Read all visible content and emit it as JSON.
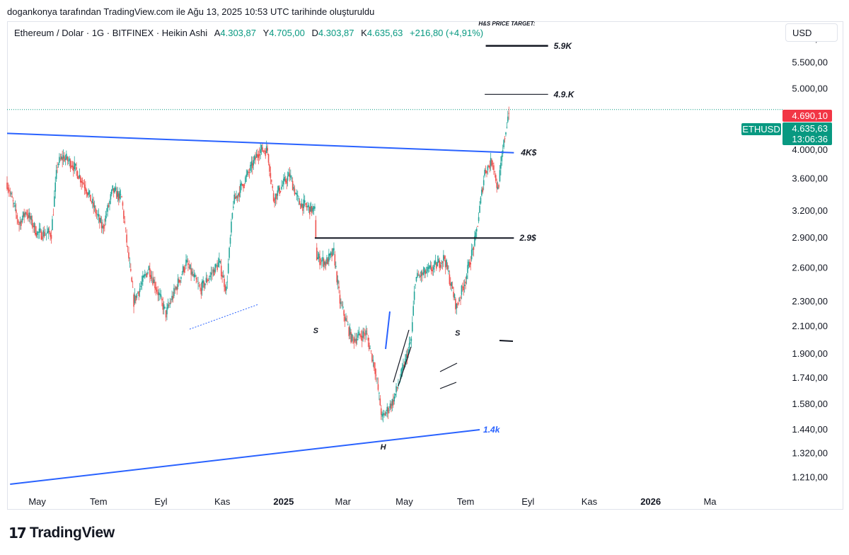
{
  "caption": "dogankonya tarafından TradingView.com ile Ağu 13, 2025 10:53 UTC tarihinde oluşturuldu",
  "legend": {
    "symbol": "Ethereum / Dolar · 1G · BITFINEX · Heikin Ashi",
    "open_label": "A",
    "open": "4.303,87",
    "high_label": "Y",
    "high": "4.705,00",
    "low_label": "D",
    "low": "4.303,87",
    "close_label": "K",
    "close": "4.635,63",
    "change": "+216,80 (+4,91%)"
  },
  "currency": "USD",
  "logo": {
    "mark": "17",
    "text": "TradingView"
  },
  "colors": {
    "up": "#089981",
    "up_candle": "#26a69a",
    "down": "#ef5350",
    "trend": "#2962ff",
    "red_tag": "#f23645"
  },
  "price_tags": {
    "high_tag": "4.690,10",
    "symbol_tag": "ETHUSD",
    "last_price": "4.635,63",
    "countdown": "13:06:36"
  },
  "chart_data": {
    "type": "candlestick",
    "style": "heikin-ashi",
    "y_scale": "log",
    "ylim": [
      1150,
      6400
    ],
    "xlim": [
      "2024-04-01",
      "2026-05-10"
    ],
    "y_ticks": [
      {
        "value": 6000,
        "label": "6.000,00"
      },
      {
        "value": 5500,
        "label": "5.500,00"
      },
      {
        "value": 5000,
        "label": "5.000,00"
      },
      {
        "value": 4000,
        "label": "4.000,00"
      },
      {
        "value": 3600,
        "label": "3.600,00"
      },
      {
        "value": 3200,
        "label": "3.200,00"
      },
      {
        "value": 2900,
        "label": "2.900,00"
      },
      {
        "value": 2600,
        "label": "2.600,00"
      },
      {
        "value": 2300,
        "label": "2.300,00"
      },
      {
        "value": 2100,
        "label": "2.100,00"
      },
      {
        "value": 1900,
        "label": "1.900,00"
      },
      {
        "value": 1740,
        "label": "1.740,00"
      },
      {
        "value": 1580,
        "label": "1.580,00"
      },
      {
        "value": 1440,
        "label": "1.440,00"
      },
      {
        "value": 1320,
        "label": "1.320,00"
      },
      {
        "value": 1210,
        "label": "1.210,00"
      }
    ],
    "x_ticks": [
      {
        "date": "2024-05-01",
        "label": "May",
        "bold": false
      },
      {
        "date": "2024-07-01",
        "label": "Tem",
        "bold": false
      },
      {
        "date": "2024-09-01",
        "label": "Eyl",
        "bold": false
      },
      {
        "date": "2024-11-01",
        "label": "Kas",
        "bold": false
      },
      {
        "date": "2025-01-01",
        "label": "2025",
        "bold": true
      },
      {
        "date": "2025-03-01",
        "label": "Mar",
        "bold": false
      },
      {
        "date": "2025-05-01",
        "label": "May",
        "bold": false
      },
      {
        "date": "2025-07-01",
        "label": "Tem",
        "bold": false
      },
      {
        "date": "2025-09-01",
        "label": "Eyl",
        "bold": false
      },
      {
        "date": "2025-11-01",
        "label": "Kas",
        "bold": false
      },
      {
        "date": "2026-01-01",
        "label": "2026",
        "bold": true
      },
      {
        "date": "2026-03-01",
        "label": "Ma",
        "bold": false
      }
    ],
    "price_path": [
      [
        "2024-04-01",
        3550
      ],
      [
        "2024-04-13",
        3050
      ],
      [
        "2024-04-20",
        3200
      ],
      [
        "2024-05-01",
        2950
      ],
      [
        "2024-05-15",
        2950
      ],
      [
        "2024-05-21",
        3800
      ],
      [
        "2024-05-27",
        3900
      ],
      [
        "2024-06-05",
        3800
      ],
      [
        "2024-06-18",
        3500
      ],
      [
        "2024-07-05",
        3000
      ],
      [
        "2024-07-15",
        3450
      ],
      [
        "2024-07-24",
        3350
      ],
      [
        "2024-08-05",
        2300
      ],
      [
        "2024-08-20",
        2600
      ],
      [
        "2024-09-06",
        2200
      ],
      [
        "2024-09-26",
        2650
      ],
      [
        "2024-10-10",
        2400
      ],
      [
        "2024-10-29",
        2650
      ],
      [
        "2024-11-05",
        2400
      ],
      [
        "2024-11-12",
        3300
      ],
      [
        "2024-11-28",
        3700
      ],
      [
        "2024-12-08",
        4000
      ],
      [
        "2024-12-16",
        4000
      ],
      [
        "2024-12-22",
        3350
      ],
      [
        "2025-01-07",
        3650
      ],
      [
        "2025-01-16",
        3300
      ],
      [
        "2025-02-01",
        3200
      ],
      [
        "2025-02-03",
        2700
      ],
      [
        "2025-02-12",
        2650
      ],
      [
        "2025-02-20",
        2750
      ],
      [
        "2025-02-26",
        2300
      ],
      [
        "2025-03-10",
        2000
      ],
      [
        "2025-03-24",
        2050
      ],
      [
        "2025-04-02",
        1800
      ],
      [
        "2025-04-09",
        1500
      ],
      [
        "2025-04-20",
        1600
      ],
      [
        "2025-04-30",
        1800
      ],
      [
        "2025-05-08",
        2000
      ],
      [
        "2025-05-12",
        2500
      ],
      [
        "2025-05-30",
        2600
      ],
      [
        "2025-06-10",
        2700
      ],
      [
        "2025-06-22",
        2250
      ],
      [
        "2025-07-01",
        2500
      ],
      [
        "2025-07-11",
        2900
      ],
      [
        "2025-07-20",
        3700
      ],
      [
        "2025-07-28",
        3850
      ],
      [
        "2025-08-02",
        3450
      ],
      [
        "2025-08-09",
        4200
      ],
      [
        "2025-08-13",
        4635
      ]
    ],
    "last_price": 4635.63,
    "annotations": [
      {
        "type": "trendline",
        "color": "#2962ff",
        "from": [
          "2024-04-01",
          4250
        ],
        "to": [
          "2025-08-18",
          3960
        ],
        "label": "4K$"
      },
      {
        "type": "trendline",
        "color": "#2962ff",
        "from": [
          "2024-04-04",
          1180
        ],
        "to": [
          "2025-07-15",
          1440
        ],
        "label": "1.4k"
      },
      {
        "type": "hline",
        "color": "#131722",
        "from": "2025-02-01",
        "to": "2025-08-18",
        "value": 2900,
        "label": "2.9$"
      },
      {
        "type": "hline",
        "color": "#131722",
        "from": "2025-07-20",
        "to": "2025-09-21",
        "value": 4900,
        "label": "4.9.K"
      },
      {
        "type": "hline",
        "color": "#131722",
        "from": "2025-07-21",
        "to": "2025-09-21",
        "value": 5850,
        "label": "5.9K"
      },
      {
        "type": "text",
        "at": [
          "2025-08-11",
          6300
        ],
        "label": "H&S PRICE TARGET:"
      },
      {
        "type": "text",
        "at": [
          "2025-02-02",
          2050
        ],
        "label": "S"
      },
      {
        "type": "text",
        "at": [
          "2025-04-10",
          1340
        ],
        "label": "H"
      },
      {
        "type": "text",
        "at": [
          "2025-06-23",
          2030
        ],
        "label": "S"
      }
    ]
  }
}
